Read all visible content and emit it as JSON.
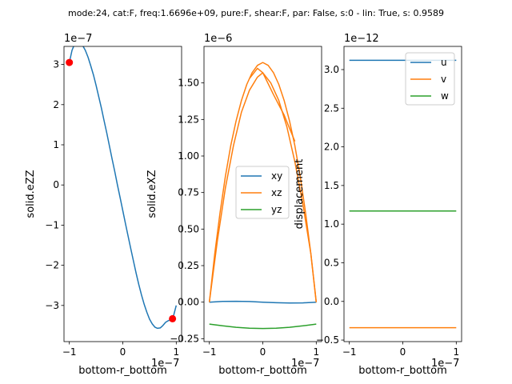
{
  "figure_title": "mode:24, cat:F, freq:1.6696e+09, pure:F, shear:F, par: False, s:0 - lin: True, s: 0.9589",
  "colors": {
    "c0": "#1f77b4",
    "c1": "#ff7f0e",
    "c2": "#2ca02c",
    "marker": "#ff0000"
  },
  "chart_data": [
    {
      "type": "line",
      "xlabel": "bottom-r_bottom",
      "ylabel": "solid.eZZ",
      "x_offset_text": "1e−7",
      "y_offset_text": "1e−7",
      "xlim": [
        -1.1,
        1.1
      ],
      "ylim": [
        -3.9,
        3.45
      ],
      "xticks": [
        -1,
        0,
        1
      ],
      "xtick_labels": [
        "−1",
        "0",
        "1"
      ],
      "yticks": [
        -3,
        -2,
        -1,
        0,
        1,
        2,
        3
      ],
      "ytick_labels": [
        "−3",
        "−2",
        "−1",
        "0",
        "1",
        "2",
        "3"
      ],
      "series": [
        {
          "color": "#1f77b4",
          "x": [
            -1.0,
            -0.95,
            -0.9,
            -0.85,
            -0.8,
            -0.75,
            -0.7,
            -0.65,
            -0.6,
            -0.55,
            -0.5,
            -0.45,
            -0.4,
            -0.35,
            -0.3,
            -0.25,
            -0.2,
            -0.15,
            -0.1,
            -0.05,
            0.0,
            0.05,
            0.1,
            0.15,
            0.2,
            0.25,
            0.3,
            0.35,
            0.4,
            0.45,
            0.5,
            0.55,
            0.6,
            0.65,
            0.7,
            0.75,
            0.8,
            0.85,
            0.9,
            0.95,
            1.0
          ],
          "y": [
            3.05,
            3.35,
            3.52,
            3.57,
            3.55,
            3.47,
            3.35,
            3.18,
            2.97,
            2.74,
            2.48,
            2.2,
            1.91,
            1.6,
            1.29,
            0.97,
            0.65,
            0.33,
            0.0,
            -0.32,
            -0.64,
            -0.96,
            -1.28,
            -1.59,
            -1.9,
            -2.2,
            -2.48,
            -2.74,
            -2.97,
            -3.17,
            -3.34,
            -3.46,
            -3.54,
            -3.57,
            -3.56,
            -3.5,
            -3.42,
            -3.38,
            -3.35,
            -3.25,
            -3.0
          ]
        }
      ],
      "markers": [
        {
          "x": -1.0,
          "y": 3.05
        },
        {
          "x": 0.93,
          "y": -3.33
        }
      ]
    },
    {
      "type": "line",
      "xlabel": "bottom-r_bottom",
      "ylabel": "solid.eXZ",
      "x_offset_text": "1e−7",
      "y_offset_text": "1e−6",
      "xlim": [
        -1.1,
        1.1
      ],
      "ylim": [
        -0.27,
        1.75
      ],
      "xticks": [
        -1,
        0,
        1
      ],
      "xtick_labels": [
        "−1",
        "0",
        "1"
      ],
      "yticks": [
        -0.25,
        0.0,
        0.25,
        0.5,
        0.75,
        1.0,
        1.25,
        1.5
      ],
      "ytick_labels": [
        "−0.25",
        "0.00",
        "0.25",
        "0.50",
        "0.75",
        "1.00",
        "1.25",
        "1.50"
      ],
      "legend": [
        "xy",
        "xz",
        "yz"
      ],
      "series": [
        {
          "name": "xy",
          "color": "#1f77b4",
          "x": [
            -1.0,
            -0.75,
            -0.5,
            -0.25,
            0.0,
            0.25,
            0.5,
            0.75,
            1.0
          ],
          "y": [
            0.0,
            0.005,
            0.006,
            0.004,
            0.0,
            -0.004,
            -0.006,
            -0.005,
            0.0
          ]
        },
        {
          "name": "xz",
          "color": "#ff7f0e",
          "x": [
            -1.0,
            -0.9,
            -0.8,
            -0.7,
            -0.6,
            -0.5,
            -0.4,
            -0.3,
            -0.2,
            -0.1,
            0.0,
            0.1,
            0.2,
            0.3,
            0.4,
            0.5,
            0.6,
            0.7,
            0.8,
            0.9,
            1.0
          ],
          "y": [
            0.0,
            0.33,
            0.61,
            0.86,
            1.07,
            1.24,
            1.38,
            1.49,
            1.57,
            1.62,
            1.64,
            1.62,
            1.57,
            1.49,
            1.38,
            1.24,
            1.07,
            0.86,
            0.61,
            0.33,
            0.0
          ]
        },
        {
          "name": "xz",
          "color": "#ff7f0e",
          "x": [
            -1.0,
            -0.85,
            -0.7,
            -0.55,
            -0.4,
            -0.25,
            -0.1,
            0.0,
            0.15,
            0.3,
            0.45,
            0.6,
            0.75,
            0.9,
            1.0
          ],
          "y": [
            0.0,
            0.42,
            0.78,
            1.07,
            1.3,
            1.45,
            1.54,
            1.57,
            1.5,
            1.38,
            1.2,
            0.96,
            0.67,
            0.33,
            0.0
          ]
        },
        {
          "name": "xz",
          "color": "#ff7f0e",
          "x": [
            -0.25,
            -0.1,
            0.0,
            0.2,
            0.4,
            0.6
          ],
          "y": [
            1.53,
            1.6,
            1.57,
            1.42,
            1.28,
            1.1
          ]
        },
        {
          "name": "yz",
          "color": "#2ca02c",
          "x": [
            -1.0,
            -0.75,
            -0.5,
            -0.25,
            0.0,
            0.25,
            0.5,
            0.75,
            1.0
          ],
          "y": [
            -0.15,
            -0.162,
            -0.172,
            -0.178,
            -0.18,
            -0.178,
            -0.172,
            -0.162,
            -0.15
          ]
        }
      ]
    },
    {
      "type": "line",
      "xlabel": "bottom-r_bottom",
      "ylabel": "displacement",
      "x_offset_text": "1e−7",
      "y_offset_text": "1e−12",
      "xlim": [
        -1.1,
        1.1
      ],
      "ylim": [
        -0.52,
        3.3
      ],
      "xticks": [
        -1,
        0,
        1
      ],
      "xtick_labels": [
        "−1",
        "0",
        "1"
      ],
      "yticks": [
        -0.5,
        0.0,
        0.5,
        1.0,
        1.5,
        2.0,
        2.5,
        3.0
      ],
      "ytick_labels": [
        "−0.5",
        "0.0",
        "0.5",
        "1.0",
        "1.5",
        "2.0",
        "2.5",
        "3.0"
      ],
      "legend": [
        "u",
        "v",
        "w"
      ],
      "series": [
        {
          "name": "u",
          "color": "#1f77b4",
          "x": [
            -1.0,
            1.0
          ],
          "y": [
            3.12,
            3.12
          ]
        },
        {
          "name": "v",
          "color": "#ff7f0e",
          "x": [
            -1.0,
            1.0
          ],
          "y": [
            -0.34,
            -0.34
          ]
        },
        {
          "name": "w",
          "color": "#2ca02c",
          "x": [
            -1.0,
            1.0
          ],
          "y": [
            1.17,
            1.17
          ]
        }
      ]
    }
  ]
}
